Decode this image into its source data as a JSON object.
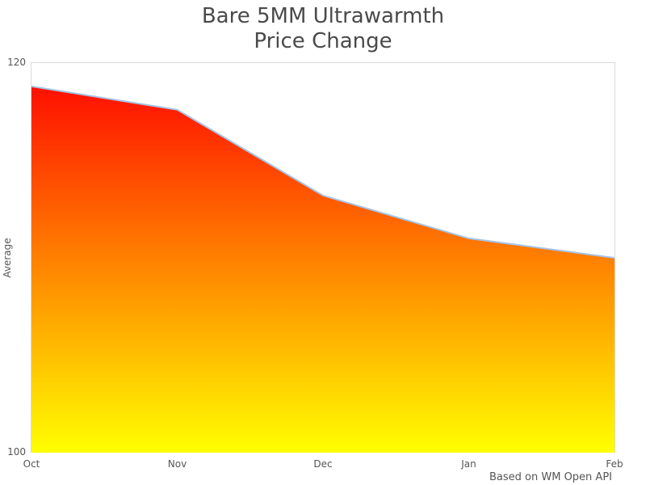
{
  "title": {
    "line1": "Bare 5MM Ultrawarmth",
    "line2": "Price Change"
  },
  "chart_data": {
    "type": "area",
    "title": "Bare 5MM Ultrawarmth Price Change",
    "categories": [
      "Oct",
      "Nov",
      "Dec",
      "Jan",
      "Feb"
    ],
    "values": [
      118.8,
      117.6,
      113.2,
      111.0,
      110.0
    ],
    "xlabel": "",
    "ylabel": "Average",
    "ylim": [
      100,
      120
    ],
    "yticks": [
      100,
      120
    ],
    "grid": false,
    "legend": "none",
    "colors": {
      "gradient_top": "#ff0000",
      "gradient_bottom": "#ffff00",
      "line": "#a6c3e5",
      "frame": "#d9d9d9",
      "text": "#555555"
    }
  },
  "footer": {
    "annotation": "Based on WM Open API"
  }
}
